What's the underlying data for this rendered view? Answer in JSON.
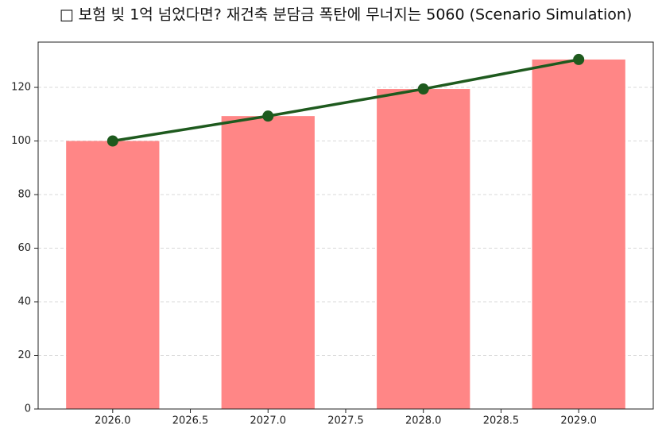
{
  "chart_data": {
    "type": "bar",
    "title": "□ 보험 빚 1억 넘었다면? 재건축 분담금 폭탄에 무너지는 5060 (Scenario Simulation)",
    "x": [
      2026,
      2027,
      2028,
      2029
    ],
    "series": [
      {
        "type": "bar",
        "color": "#ff8686",
        "values": [
          100,
          109.3,
          119.4,
          130.4
        ]
      },
      {
        "type": "line",
        "color": "#1e5a1e",
        "values": [
          100,
          109.3,
          119.4,
          130.4
        ]
      }
    ],
    "xlim": [
      2025.52,
      2029.48
    ],
    "xticks": [
      {
        "value": 2026,
        "label": "2026.0"
      },
      {
        "value": 2026.5,
        "label": "2026.5"
      },
      {
        "value": 2027,
        "label": "2027.0"
      },
      {
        "value": 2027.5,
        "label": "2027.5"
      },
      {
        "value": 2028,
        "label": "2028.0"
      },
      {
        "value": 2028.5,
        "label": "2028.5"
      },
      {
        "value": 2029,
        "label": "2029.0"
      }
    ],
    "ylim": [
      0,
      136.9
    ],
    "yticks": [
      0,
      20,
      40,
      60,
      80,
      100,
      120
    ],
    "grid": true
  }
}
